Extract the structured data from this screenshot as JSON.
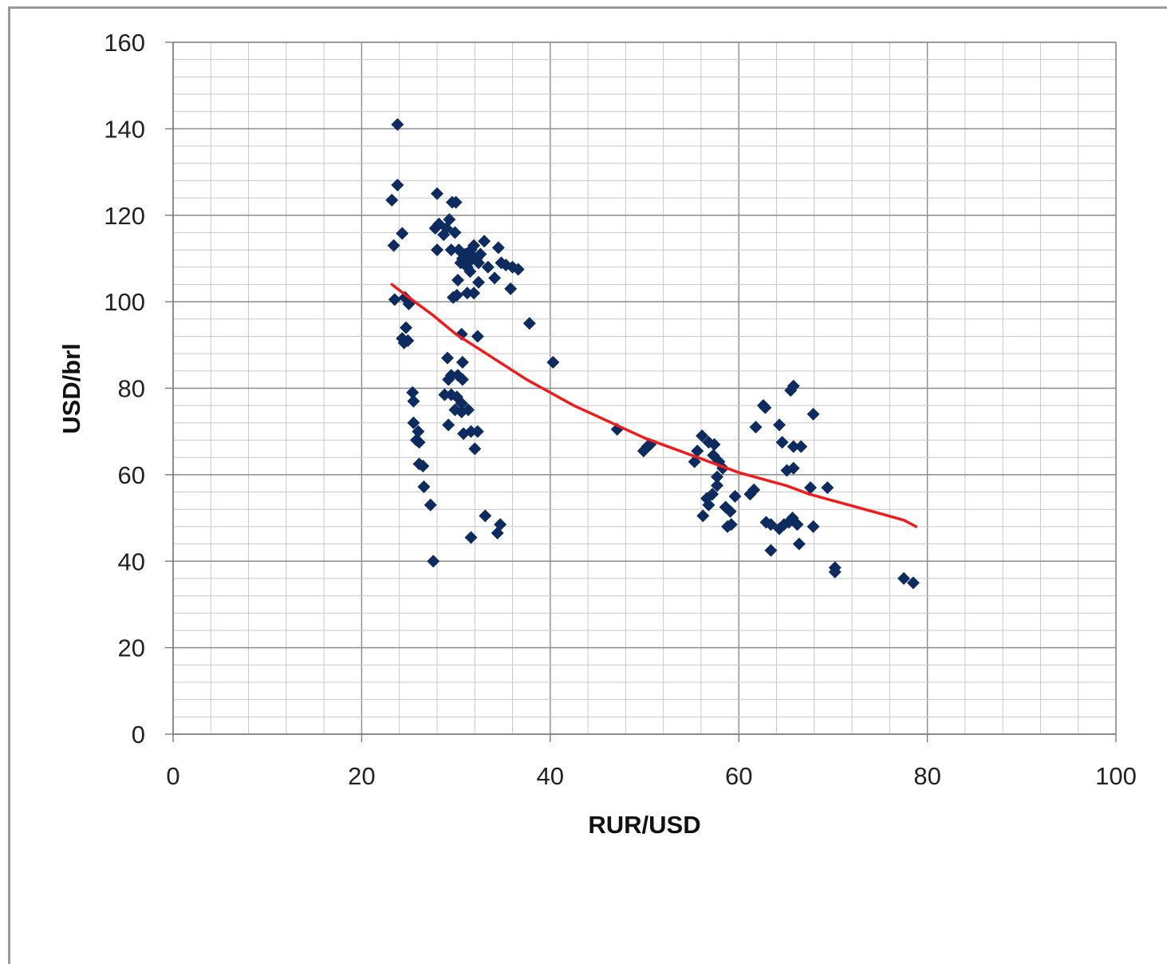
{
  "chart_data": {
    "type": "scatter",
    "title": "",
    "xlabel": "RUR/USD",
    "ylabel": "USD/brl",
    "xlim": [
      0,
      100
    ],
    "ylim": [
      0,
      160
    ],
    "x_ticks": [
      "0",
      "20",
      "40",
      "60",
      "80",
      "100"
    ],
    "y_ticks": [
      "0",
      "20",
      "40",
      "60",
      "80",
      "100",
      "120",
      "140",
      "160"
    ],
    "grid": true,
    "legend": "none",
    "colors": {
      "points": "#0d2b5e",
      "trendline": "#ee1c1c",
      "grid_major": "#8c8c8c",
      "grid_minor": "#c8c8c8"
    },
    "series": [
      {
        "type": "scatter",
        "points": [
          [
            23.8,
            141
          ],
          [
            23.8,
            127
          ],
          [
            23.2,
            123.5
          ],
          [
            24.3,
            115.8
          ],
          [
            23.4,
            113
          ],
          [
            23.5,
            100.5
          ],
          [
            24.6,
            101
          ],
          [
            25.0,
            99.5
          ],
          [
            24.7,
            94
          ],
          [
            24.3,
            91.5
          ],
          [
            24.5,
            90.5
          ],
          [
            24.9,
            91
          ],
          [
            25.4,
            79
          ],
          [
            25.5,
            77
          ],
          [
            25.5,
            72
          ],
          [
            26.0,
            70
          ],
          [
            25.8,
            68
          ],
          [
            26.1,
            67.5
          ],
          [
            26.1,
            62.5
          ],
          [
            26.5,
            62
          ],
          [
            26.6,
            57.2
          ],
          [
            27.3,
            53
          ],
          [
            27.6,
            40
          ],
          [
            27.8,
            117
          ],
          [
            28.2,
            118
          ],
          [
            28.0,
            125
          ],
          [
            28.7,
            115.5
          ],
          [
            29.3,
            119
          ],
          [
            29.0,
            117
          ],
          [
            29.6,
            123
          ],
          [
            30.0,
            123
          ],
          [
            29.9,
            116
          ],
          [
            28.0,
            112
          ],
          [
            29.5,
            112
          ],
          [
            30.3,
            112
          ],
          [
            30.7,
            110
          ],
          [
            31.0,
            111
          ],
          [
            31.3,
            109
          ],
          [
            31.6,
            112
          ],
          [
            31.9,
            113
          ],
          [
            32.2,
            110
          ],
          [
            32.6,
            111
          ],
          [
            33.0,
            114
          ],
          [
            33.4,
            108
          ],
          [
            34.5,
            112.5
          ],
          [
            34.8,
            109
          ],
          [
            35.3,
            108.5
          ],
          [
            36.0,
            108
          ],
          [
            36.6,
            107.5
          ],
          [
            30.5,
            109
          ],
          [
            31.2,
            108
          ],
          [
            31.8,
            110.5
          ],
          [
            32.4,
            109
          ],
          [
            31.5,
            107
          ],
          [
            30.2,
            105
          ],
          [
            32.4,
            104.5
          ],
          [
            34.1,
            105.5
          ],
          [
            35.8,
            103
          ],
          [
            37.8,
            95
          ],
          [
            40.3,
            86
          ],
          [
            29.7,
            101
          ],
          [
            30.1,
            101.5
          ],
          [
            31.2,
            102
          ],
          [
            31.9,
            102
          ],
          [
            30.6,
            92.5
          ],
          [
            32.3,
            92
          ],
          [
            29.1,
            87
          ],
          [
            29.5,
            83
          ],
          [
            30.2,
            83
          ],
          [
            29.2,
            82
          ],
          [
            30.7,
            82
          ],
          [
            30.7,
            86
          ],
          [
            28.8,
            78.5
          ],
          [
            29.5,
            78.5
          ],
          [
            30.1,
            78
          ],
          [
            30.6,
            76.5
          ],
          [
            29.9,
            75
          ],
          [
            30.6,
            74.5
          ],
          [
            31.3,
            75
          ],
          [
            29.2,
            71.5
          ],
          [
            30.8,
            69.5
          ],
          [
            31.6,
            70
          ],
          [
            32.3,
            70
          ],
          [
            32.0,
            66
          ],
          [
            33.1,
            50.5
          ],
          [
            34.7,
            48.5
          ],
          [
            31.6,
            45.5
          ],
          [
            34.4,
            46.5
          ],
          [
            47.1,
            70.5
          ],
          [
            49.9,
            65.5
          ],
          [
            50.3,
            66.5
          ],
          [
            50.6,
            67
          ],
          [
            55.3,
            63
          ],
          [
            55.6,
            65.5
          ],
          [
            56.1,
            69
          ],
          [
            56.8,
            67.5
          ],
          [
            57.4,
            67
          ],
          [
            57.3,
            64.5
          ],
          [
            57.9,
            63
          ],
          [
            58.3,
            61.5
          ],
          [
            57.7,
            59.5
          ],
          [
            57.7,
            57.5
          ],
          [
            57.2,
            55.5
          ],
          [
            56.6,
            54.5
          ],
          [
            56.2,
            50.5
          ],
          [
            56.8,
            53
          ],
          [
            58.6,
            52.5
          ],
          [
            59.1,
            51.5
          ],
          [
            59.6,
            55
          ],
          [
            59.2,
            48.5
          ],
          [
            58.8,
            48
          ],
          [
            61.2,
            55.5
          ],
          [
            61.6,
            56.5
          ],
          [
            61.8,
            71
          ],
          [
            62.6,
            76
          ],
          [
            62.8,
            75.5
          ],
          [
            64.3,
            71.5
          ],
          [
            64.6,
            67.5
          ],
          [
            65.1,
            61
          ],
          [
            65.8,
            61.5
          ],
          [
            65.8,
            66.5
          ],
          [
            66.6,
            66.5
          ],
          [
            65.5,
            79.5
          ],
          [
            65.8,
            80.5
          ],
          [
            67.9,
            74
          ],
          [
            67.6,
            57
          ],
          [
            69.4,
            57
          ],
          [
            62.9,
            49
          ],
          [
            63.4,
            48.5
          ],
          [
            63.4,
            42.5
          ],
          [
            64.3,
            47.5
          ],
          [
            64.8,
            48.5
          ],
          [
            65.3,
            49
          ],
          [
            65.7,
            50
          ],
          [
            66.2,
            48.5
          ],
          [
            66.4,
            44
          ],
          [
            67.9,
            48
          ],
          [
            70.2,
            38.5
          ],
          [
            70.2,
            37.5
          ],
          [
            77.5,
            36
          ],
          [
            78.5,
            35
          ]
        ]
      },
      {
        "type": "trendline",
        "points": [
          [
            23.2,
            104
          ],
          [
            25.0,
            101
          ],
          [
            27.5,
            97
          ],
          [
            30.0,
            92.5
          ],
          [
            32.5,
            89
          ],
          [
            35.0,
            85.5
          ],
          [
            37.5,
            82
          ],
          [
            40.0,
            79
          ],
          [
            42.5,
            76
          ],
          [
            45.0,
            73.5
          ],
          [
            47.5,
            71
          ],
          [
            50.0,
            68.5
          ],
          [
            52.5,
            66.5
          ],
          [
            55.0,
            64.5
          ],
          [
            57.5,
            62.5
          ],
          [
            60.0,
            60.5
          ],
          [
            62.5,
            59
          ],
          [
            65.0,
            57.5
          ],
          [
            67.5,
            55.5
          ],
          [
            70.0,
            54
          ],
          [
            72.5,
            52.5
          ],
          [
            75.0,
            51
          ],
          [
            77.5,
            49.5
          ],
          [
            78.8,
            48
          ]
        ]
      }
    ]
  }
}
